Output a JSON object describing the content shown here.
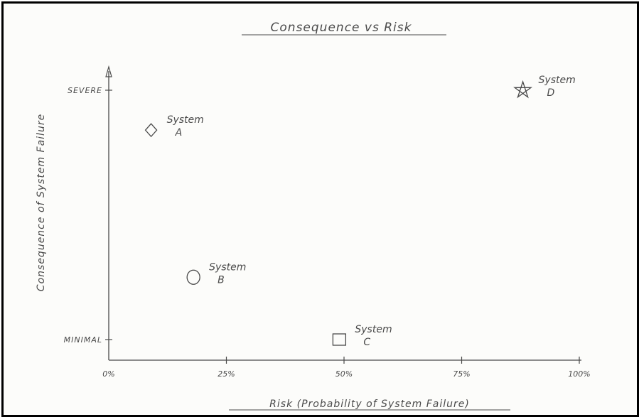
{
  "chart_data": {
    "type": "scatter",
    "title": "Consequence vs Risk",
    "xlabel": "Risk (Probability of System Failure)",
    "ylabel": "Consequence of System Failure",
    "xlim": [
      0,
      100
    ],
    "ylim": [
      0,
      100
    ],
    "x_ticks": [
      {
        "value": 0,
        "label": "0%"
      },
      {
        "value": 25,
        "label": "25%"
      },
      {
        "value": 50,
        "label": "50%"
      },
      {
        "value": 75,
        "label": "75%"
      },
      {
        "value": 100,
        "label": "100%"
      }
    ],
    "y_categories": [
      {
        "value": 100,
        "label": "Severe"
      },
      {
        "value": 0,
        "label": "Minimal"
      }
    ],
    "points": [
      {
        "name": "System A",
        "line1": "System",
        "line2": "A",
        "marker": "diamond",
        "x": 9,
        "y": 84
      },
      {
        "name": "System B",
        "line1": "System",
        "line2": "B",
        "marker": "circle",
        "x": 18,
        "y": 25
      },
      {
        "name": "System C",
        "line1": "System",
        "line2": "C",
        "marker": "square",
        "x": 49,
        "y": 0
      },
      {
        "name": "System D",
        "line1": "System",
        "line2": "D",
        "marker": "star",
        "x": 88,
        "y": 100
      }
    ],
    "grid": false,
    "colors": {
      "ink": "#4a4a4a",
      "paper": "#fcfcfa",
      "frame": "#000000"
    }
  }
}
